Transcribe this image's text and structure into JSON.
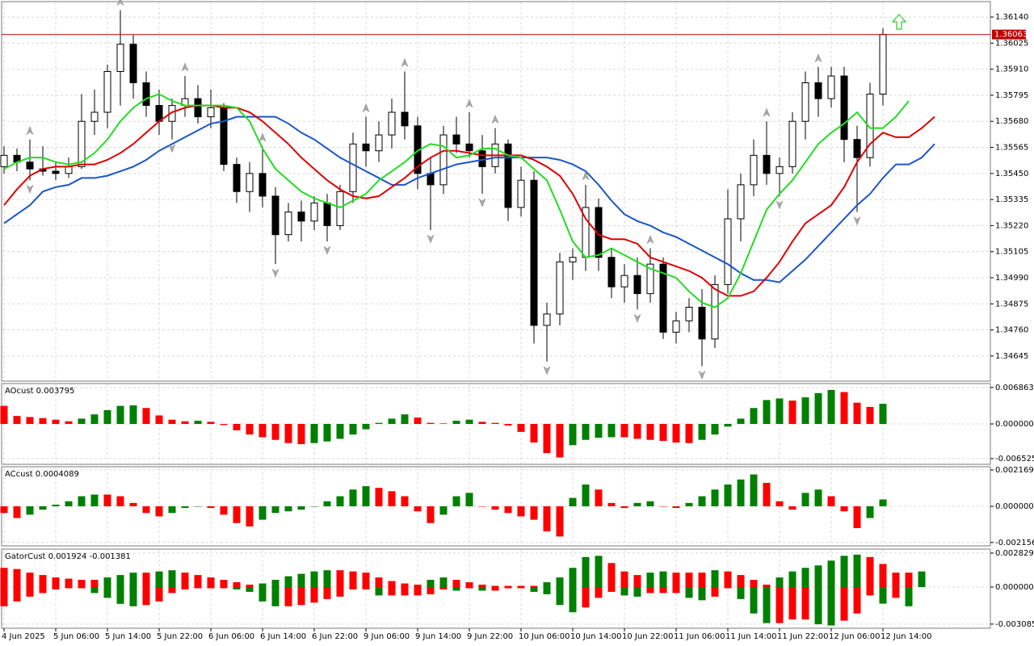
{
  "chart_data": [
    {
      "type": "candlestick",
      "categories": [
        "4 Jun 2025",
        null,
        null,
        null,
        "5 Jun 06:00",
        null,
        null,
        null,
        "5 Jun 14:00",
        null,
        null,
        null,
        "5 Jun 22:00",
        null,
        null,
        null,
        "6 Jun 06:00",
        null,
        null,
        null,
        "6 Jun 14:00",
        null,
        null,
        null,
        "6 Jun 22:00",
        null,
        null,
        null,
        "9 Jun 06:00",
        null,
        null,
        null,
        "9 Jun 14:00",
        null,
        null,
        null,
        "9 Jun 22:00",
        null,
        null,
        null,
        "10 Jun 06:00",
        null,
        null,
        null,
        "10 Jun 14:00",
        null,
        null,
        null,
        "10 Jun 22:00",
        null,
        null,
        null,
        "11 Jun 06:00",
        null,
        null,
        null,
        "11 Jun 14:00",
        null,
        null,
        null,
        "11 Jun 22:00",
        null,
        null,
        null,
        "12 Jun 06:00",
        null,
        null,
        null,
        "12 Jun 14:00",
        null,
        null,
        null,
        null
      ],
      "open": [
        1.3548,
        1.3553,
        1.355,
        1.3547,
        1.3546,
        1.3545,
        1.3548,
        1.3568,
        1.3572,
        1.359,
        1.3602,
        1.3585,
        1.3575,
        1.3568,
        1.3575,
        1.3578,
        1.357,
        1.3574,
        1.3549,
        1.3537,
        1.3545,
        1.3535,
        1.3518,
        1.3528,
        1.3524,
        1.3532,
        1.3522,
        1.3537,
        1.3558,
        1.3555,
        1.3562,
        1.3572,
        1.3566,
        1.3545,
        1.354,
        1.3562,
        1.3558,
        1.3555,
        1.3548,
        1.3558,
        1.353,
        1.3542,
        1.3478,
        1.3483,
        1.3506,
        1.3508,
        1.353,
        1.3508,
        1.3495,
        1.35,
        1.3492,
        1.3505,
        1.3475,
        1.348,
        1.3486,
        1.3472,
        1.3496,
        1.3525,
        1.354,
        1.3553,
        1.3545,
        1.3548,
        1.3568,
        1.3585,
        1.3578,
        1.3588,
        1.356,
        1.3552,
        1.358,
        null,
        null,
        null,
        null
      ],
      "high": [
        1.3557,
        1.3556,
        1.356,
        1.3557,
        1.355,
        1.3552,
        1.358,
        1.3582,
        1.3593,
        1.3617,
        1.3606,
        1.359,
        1.3582,
        1.3578,
        1.3588,
        1.3584,
        1.3582,
        1.3576,
        1.3552,
        1.355,
        1.3557,
        1.3539,
        1.3532,
        1.3533,
        1.3535,
        1.3536,
        1.354,
        1.3563,
        1.357,
        1.3568,
        1.3578,
        1.359,
        1.357,
        1.3552,
        1.3566,
        1.357,
        1.3572,
        1.3562,
        1.3565,
        1.356,
        1.3548,
        1.3546,
        1.3488,
        1.351,
        1.3512,
        1.354,
        1.3534,
        1.3512,
        1.3505,
        1.3508,
        1.3512,
        1.3508,
        1.3484,
        1.349,
        1.3494,
        1.35,
        1.3538,
        1.3545,
        1.356,
        1.3568,
        1.3552,
        1.3572,
        1.359,
        1.3592,
        1.3592,
        1.3592,
        1.3566,
        1.3585,
        1.3609,
        null,
        null,
        null,
        null
      ],
      "low": [
        1.3545,
        1.3546,
        1.3542,
        1.3544,
        1.3542,
        1.3543,
        1.3547,
        1.3562,
        1.3565,
        1.3575,
        1.3578,
        1.357,
        1.3562,
        1.356,
        1.357,
        1.3567,
        1.3565,
        1.3546,
        1.3532,
        1.3528,
        1.353,
        1.3505,
        1.3515,
        1.3515,
        1.352,
        1.3515,
        1.352,
        1.3532,
        1.3548,
        1.355,
        1.3556,
        1.356,
        1.3538,
        1.352,
        1.3536,
        1.3554,
        1.3552,
        1.3536,
        1.3545,
        1.3524,
        1.3526,
        1.347,
        1.3462,
        1.3478,
        1.3498,
        1.3502,
        1.3502,
        1.349,
        1.3488,
        1.3485,
        1.3488,
        1.3472,
        1.347,
        1.3475,
        1.346,
        1.3468,
        1.3492,
        1.3515,
        1.3535,
        1.354,
        1.3535,
        1.3545,
        1.356,
        1.357,
        1.3574,
        1.355,
        1.3528,
        1.3548,
        1.3575,
        null,
        null,
        null,
        null
      ],
      "close": [
        1.3553,
        1.355,
        1.3547,
        1.3546,
        1.3545,
        1.3548,
        1.3568,
        1.3572,
        1.359,
        1.3602,
        1.3585,
        1.3575,
        1.3568,
        1.3575,
        1.3578,
        1.357,
        1.3574,
        1.3549,
        1.3537,
        1.3545,
        1.3535,
        1.3518,
        1.3528,
        1.3524,
        1.3532,
        1.3522,
        1.3537,
        1.3558,
        1.3555,
        1.3562,
        1.3572,
        1.3566,
        1.3545,
        1.354,
        1.3562,
        1.3558,
        1.3555,
        1.3548,
        1.3558,
        1.353,
        1.3542,
        1.3478,
        1.3483,
        1.3506,
        1.3508,
        1.353,
        1.3508,
        1.3495,
        1.35,
        1.3492,
        1.3505,
        1.3475,
        1.348,
        1.3486,
        1.3472,
        1.3496,
        1.3525,
        1.354,
        1.3553,
        1.3545,
        1.3548,
        1.3568,
        1.3585,
        1.3578,
        1.3588,
        1.356,
        1.3552,
        1.358,
        1.36063,
        null,
        null,
        null,
        null
      ],
      "up_color": "#ffffff",
      "down_color": "#000000",
      "lines": [
        {
          "color": "#1a56c8",
          "values": [
            1.3523,
            1.3527,
            1.3531,
            1.3537,
            1.3539,
            1.354,
            1.3543,
            1.3543,
            1.3544,
            1.3546,
            1.3548,
            1.3551,
            1.3555,
            1.3558,
            1.3561,
            1.3564,
            1.3567,
            1.3568,
            1.357,
            1.357,
            1.357,
            1.357,
            1.3567,
            1.3563,
            1.356,
            1.3556,
            1.3552,
            1.3549,
            1.3546,
            1.3543,
            1.354,
            1.354,
            1.3543,
            1.3545,
            1.3547,
            1.3549,
            1.355,
            1.3551,
            1.3552,
            1.3552,
            1.3552,
            1.3552,
            1.3552,
            1.3551,
            1.3549,
            1.3546,
            1.354,
            1.3533,
            1.3527,
            1.3524,
            1.3522,
            1.3519,
            1.3517,
            1.3514,
            1.3511,
            1.3508,
            1.3505,
            1.3501,
            1.3498,
            1.3498,
            1.3497,
            1.3502,
            1.3507,
            1.3513,
            1.3519,
            1.3525,
            1.3531,
            1.3536,
            1.3543,
            1.3549,
            1.3549,
            1.3552,
            1.3558
          ]
        },
        {
          "color": "#e00000",
          "values": [
            1.3531,
            1.3538,
            1.3544,
            1.3547,
            1.3548,
            1.3548,
            1.3549,
            1.3549,
            1.3551,
            1.3554,
            1.3558,
            1.3563,
            1.3568,
            1.3572,
            1.3574,
            1.3575,
            1.3575,
            1.3574,
            1.3574,
            1.3572,
            1.3568,
            1.3563,
            1.3558,
            1.3552,
            1.3547,
            1.3542,
            1.3538,
            1.3535,
            1.3534,
            1.3535,
            1.3539,
            1.3543,
            1.3548,
            1.3552,
            1.3555,
            1.3555,
            1.3554,
            1.3553,
            1.3553,
            1.3553,
            1.3553,
            1.3551,
            1.3548,
            1.3544,
            1.3536,
            1.3525,
            1.3518,
            1.3516,
            1.3516,
            1.3514,
            1.3508,
            1.3506,
            1.3504,
            1.3502,
            1.3499,
            1.3494,
            1.3491,
            1.3491,
            1.3493,
            1.3499,
            1.3506,
            1.3515,
            1.3523,
            1.3527,
            1.3531,
            1.3539,
            1.355,
            1.3558,
            1.3563,
            1.3561,
            1.3561,
            1.3565,
            1.357
          ]
        },
        {
          "color": "#22dd22",
          "values": [
            1.3547,
            1.355,
            1.3552,
            1.3552,
            1.355,
            1.3549,
            1.355,
            1.3554,
            1.356,
            1.3568,
            1.3574,
            1.3578,
            1.358,
            1.3577,
            1.3575,
            1.3575,
            1.3575,
            1.3575,
            1.3574,
            1.3568,
            1.3556,
            1.3547,
            1.3542,
            1.3537,
            1.3534,
            1.3532,
            1.353,
            1.3533,
            1.3536,
            1.3542,
            1.3546,
            1.355,
            1.3555,
            1.3558,
            1.3557,
            1.3552,
            1.3553,
            1.3556,
            1.3556,
            1.3553,
            1.3552,
            1.3547,
            1.3542,
            1.3529,
            1.3515,
            1.3508,
            1.3509,
            1.3512,
            1.3509,
            1.3506,
            1.3503,
            1.3501,
            1.3499,
            1.3493,
            1.3488,
            1.3486,
            1.349,
            1.3501,
            1.3515,
            1.3529,
            1.3536,
            1.3542,
            1.355,
            1.3558,
            1.3563,
            1.3567,
            1.3572,
            1.3565,
            1.3565,
            1.357,
            1.3577,
            null,
            null
          ]
        }
      ],
      "fractals": {
        "up": [
          2,
          9,
          14,
          20,
          28,
          31,
          36,
          38,
          45,
          50,
          59,
          63
        ],
        "down": [
          2,
          13,
          21,
          25,
          33,
          37,
          42,
          49,
          54,
          60,
          66
        ]
      },
      "fractal_color": "#a8a8a8",
      "current_price": 1.36063,
      "price_line_color": "#c00000",
      "ylim": [
        1.34534,
        1.36208
      ],
      "yticks": [
        {
          "value": 1.3614,
          "label": "1.36140"
        },
        1.36025,
        {
          "value": 1.3591,
          "label": "1.35910"
        },
        1.35795,
        {
          "value": 1.3568,
          "label": "1.35680"
        },
        1.35565,
        {
          "value": 1.3545,
          "label": "1.35450"
        },
        1.35335,
        {
          "value": 1.3522,
          "label": "1.35220"
        },
        1.35105,
        {
          "value": 1.3499,
          "label": "1.34990"
        },
        1.34875,
        {
          "value": 1.3476,
          "label": "1.34760"
        },
        1.34645
      ],
      "grid": true
    },
    {
      "type": "bar",
      "title": "AOcust 0.003795",
      "values": [
        0.0034,
        0.0015,
        0.0013,
        0.0011,
        0.0008,
        0.0005,
        0.001,
        0.0018,
        0.0026,
        0.0034,
        0.0035,
        0.003,
        0.0016,
        0.0008,
        0.0005,
        0.0006,
        0.0004,
        -0.0002,
        -0.0012,
        -0.002,
        -0.0025,
        -0.003,
        -0.0036,
        -0.0038,
        -0.0036,
        -0.0033,
        -0.0028,
        -0.002,
        -0.001,
        0.0002,
        0.001,
        0.0018,
        0.0012,
        0.0002,
        0.0001,
        0.0006,
        0.0008,
        0.0004,
        0.0002,
        -0.0003,
        -0.0015,
        -0.0035,
        -0.0055,
        -0.0063,
        -0.004,
        -0.003,
        -0.0026,
        -0.0025,
        -0.0025,
        -0.0028,
        -0.003,
        -0.0032,
        -0.0035,
        -0.0036,
        -0.003,
        -0.002,
        -0.0005,
        0.001,
        0.003,
        0.0045,
        0.0048,
        0.0044,
        0.005,
        0.0058,
        0.0064,
        0.006,
        0.004,
        0.0032,
        0.003795,
        null,
        null,
        null,
        null
      ],
      "up_color": "#008000",
      "down_color": "#ff0000",
      "ylim": [
        -0.0076,
        0.0076
      ],
      "yticks": [
        0.006863,
        {
          "value": 0,
          "label": "0.000000"
        },
        -0.006525
      ],
      "grid": true
    },
    {
      "type": "bar",
      "title": "ACcust 0.0004089",
      "values": [
        -0.0004,
        -0.0007,
        -0.0005,
        -0.0002,
        0.0001,
        0.0003,
        0.0006,
        0.0007,
        0.0007,
        0.0006,
        0.0002,
        -0.0004,
        -0.0006,
        -0.0004,
        -0.0001,
        0,
        -0.0001,
        -0.0005,
        -0.001,
        -0.0012,
        -0.0008,
        -0.0004,
        -0.0003,
        -0.0002,
        0,
        0.0003,
        0.0006,
        0.001,
        0.0012,
        0.0011,
        0.0009,
        0.0006,
        -0.0003,
        -0.001,
        -0.0005,
        0.0006,
        0.0008,
        0,
        -0.0002,
        -0.0004,
        -0.0006,
        -0.0008,
        -0.0015,
        -0.0018,
        0.0005,
        0.0013,
        0.001,
        0.0002,
        -0.0001,
        0.0002,
        0.0003,
        0,
        -0.0001,
        0.0002,
        0.0006,
        0.001,
        0.0013,
        0.0016,
        0.0019,
        0.0014,
        0.0003,
        -0.0002,
        0.0008,
        0.001,
        0.0006,
        -0.0003,
        -0.0013,
        -0.0007,
        0.0004089,
        null,
        null,
        null,
        null
      ],
      "up_color": "#008000",
      "down_color": "#ff0000",
      "ylim": [
        -0.00236,
        0.00236
      ],
      "yticks": [
        0.0021696,
        {
          "value": 0,
          "label": "0.0000000"
        },
        -0.0021568
      ],
      "grid": true
    },
    {
      "type": "gator",
      "title": "GatorCust 0.001924 -0.001381",
      "series": [
        {
          "values": [
            0.0016,
            0.0015,
            0.0012,
            0.001,
            0.0008,
            0.0007,
            0.0006,
            0.0006,
            0.0008,
            0.001,
            0.0012,
            0.0012,
            0.0013,
            0.0014,
            0.0012,
            0.001,
            0.0008,
            0.0006,
            0.0004,
            0.0002,
            0.0003,
            0.0006,
            0.0009,
            0.0011,
            0.0013,
            0.0014,
            0.0014,
            0.0013,
            0.0012,
            0.0008,
            0.0005,
            0.0003,
            0.0002,
            0.0006,
            0.0008,
            0.0006,
            0.0004,
            0.0002,
            0.0001,
            0.0001,
            0.0001,
            0.0001,
            0.0004,
            0.0008,
            0.0016,
            0.0025,
            0.0026,
            0.002,
            0.0013,
            0.001,
            0.0012,
            0.0013,
            0.0012,
            0.0012,
            0.0012,
            0.0014,
            0.0013,
            0.001,
            0.0006,
            0.0002,
            0.0008,
            0.0013,
            0.0016,
            0.0018,
            0.0022,
            0.0026,
            0.0027,
            0.0025,
            0.001924,
            0.0012,
            0.0012,
            0.0013,
            null
          ]
        },
        {
          "values": [
            -0.0016,
            -0.0012,
            -0.0008,
            -0.0005,
            -0.0002,
            -0.0001,
            -0.0001,
            -0.0005,
            -0.0009,
            -0.0014,
            -0.0016,
            -0.0015,
            -0.0012,
            -0.0005,
            -0.0002,
            -0.0001,
            -0.0001,
            -0.0001,
            -0.0002,
            -0.0004,
            -0.0012,
            -0.0016,
            -0.0016,
            -0.0015,
            -0.0013,
            -0.001,
            -0.0008,
            -0.0002,
            -0.0002,
            -0.0007,
            -0.0007,
            -0.0007,
            -0.0007,
            -0.0006,
            -0.0002,
            -0.0003,
            -0.0001,
            -0.0003,
            -0.0003,
            -0.0001,
            -0.0001,
            -0.0004,
            -0.0006,
            -0.0015,
            -0.0021,
            -0.0017,
            -0.0009,
            -0.0004,
            -0.0007,
            -0.0008,
            -0.0005,
            -0.0005,
            -0.0005,
            -0.0009,
            -0.0011,
            -0.0008,
            -0.0001,
            -0.001,
            -0.0022,
            -0.003,
            -0.003,
            -0.0027,
            -0.0027,
            -0.0031,
            -0.0032,
            -0.0028,
            -0.0022,
            -0.0007,
            -0.001381,
            -0.0009,
            -0.0016,
            null,
            null
          ]
        }
      ],
      "up_color": "#008000",
      "down_color": "#ff0000",
      "ylim": [
        -0.00343,
        0.00316
      ],
      "yticks": [
        0.002829,
        {
          "value": 0,
          "label": "0.000000"
        },
        -0.003085
      ],
      "grid": true
    }
  ]
}
